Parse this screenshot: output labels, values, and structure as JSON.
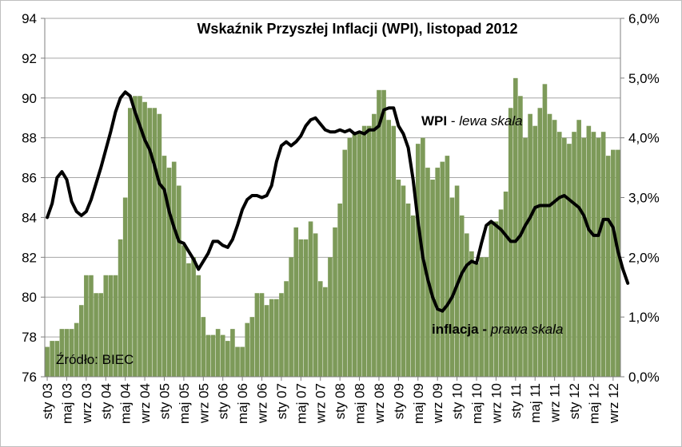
{
  "chart_data": {
    "type": "bar",
    "title": "Wskaźnik  Przyszłej Inflacji (WPI), listopad 2012",
    "source": "Źródło: BIEC",
    "annotations": {
      "wpi_name": "WPI",
      "wpi_sep": " - ",
      "wpi_scale": "lewa skala",
      "infl_name": "inflacja",
      "infl_sep": " - ",
      "infl_scale": "prawa skala"
    },
    "left_axis": {
      "ylim": [
        76,
        94
      ],
      "ticks": [
        "76",
        "78",
        "80",
        "82",
        "84",
        "86",
        "88",
        "90",
        "92",
        "94"
      ]
    },
    "right_axis": {
      "ylim": [
        0,
        6
      ],
      "ticks": [
        "0,0%",
        "1,0%",
        "2,0%",
        "3,0%",
        "4,0%",
        "5,0%",
        "6,0%"
      ]
    },
    "x_tick_labels": [
      "sty 03",
      "maj 03",
      "wrz 03",
      "sty 04",
      "maj 04",
      "wrz 04",
      "sty 05",
      "maj 05",
      "wrz 05",
      "sty 06",
      "maj 06",
      "wrz 06",
      "sty 07",
      "maj 07",
      "wrz 07",
      "sty 08",
      "maj 08",
      "wrz 08",
      "sty 09",
      "maj 09",
      "wrz 09",
      "sty 10",
      "maj 10",
      "wrz 10",
      "sty 11",
      "maj 11",
      "wrz 11",
      "sty 12",
      "maj 12",
      "wrz 12"
    ],
    "grid": true,
    "bar_color": "#7d9a59",
    "line_color": "#000000",
    "series": [
      {
        "type": "bar",
        "axis": "right",
        "values": [
          0.5,
          0.6,
          0.6,
          0.8,
          0.8,
          0.8,
          0.9,
          1.2,
          1.7,
          1.7,
          1.4,
          1.4,
          1.7,
          1.7,
          1.7,
          2.3,
          3.0,
          4.5,
          4.7,
          4.7,
          4.6,
          4.5,
          4.5,
          4.4,
          3.7,
          3.5,
          3.6,
          3.2,
          2.2,
          1.9,
          2.0,
          1.7,
          1.0,
          0.7,
          0.7,
          0.8,
          0.7,
          0.6,
          0.8,
          0.5,
          0.5,
          0.9,
          1.0,
          1.4,
          1.4,
          1.2,
          1.3,
          1.3,
          1.4,
          1.6,
          2.0,
          2.5,
          2.3,
          2.3,
          2.6,
          2.4,
          1.6,
          1.5,
          2.0,
          2.5,
          2.9,
          3.8,
          4.0,
          4.1,
          4.1,
          4.2,
          4.2,
          4.4,
          4.8,
          4.8,
          4.3,
          4.2,
          3.3,
          3.2,
          2.9,
          2.7,
          3.9,
          4.0,
          3.5,
          3.3,
          3.5,
          3.6,
          3.7,
          3.0,
          3.2,
          2.7,
          2.4,
          2.1,
          1.9,
          2.0,
          2.0,
          2.6,
          2.6,
          2.8,
          3.1,
          4.5,
          5.0,
          4.7,
          4.0,
          4.4,
          4.2,
          4.5,
          4.9,
          4.4,
          4.3,
          4.1,
          4.0,
          3.9,
          4.1,
          4.3,
          4.0,
          4.2,
          4.1,
          4.0,
          4.1,
          3.7,
          3.8,
          3.8
        ]
      },
      {
        "type": "line",
        "axis": "left",
        "values": [
          84.0,
          84.7,
          86.0,
          86.3,
          85.9,
          84.8,
          84.3,
          84.1,
          84.3,
          84.9,
          85.7,
          86.5,
          87.4,
          88.3,
          89.3,
          90.0,
          90.3,
          90.1,
          89.3,
          88.6,
          87.9,
          87.4,
          86.6,
          85.7,
          85.4,
          84.3,
          83.5,
          82.8,
          82.7,
          82.3,
          81.9,
          81.4,
          81.8,
          82.2,
          82.8,
          82.8,
          82.6,
          82.5,
          82.9,
          83.6,
          84.4,
          84.9,
          85.1,
          85.1,
          85.0,
          85.1,
          85.6,
          86.8,
          87.6,
          87.8,
          87.6,
          87.8,
          88.1,
          88.6,
          88.9,
          89.0,
          88.7,
          88.4,
          88.3,
          88.3,
          88.4,
          88.3,
          88.4,
          88.2,
          88.3,
          88.2,
          88.4,
          88.4,
          88.6,
          89.4,
          89.5,
          89.5,
          88.6,
          88.2,
          87.5,
          85.9,
          83.8,
          82.0,
          80.9,
          80.0,
          79.4,
          79.3,
          79.6,
          80.0,
          80.6,
          81.2,
          81.6,
          81.8,
          81.7,
          82.7,
          83.6,
          83.8,
          83.6,
          83.4,
          83.1,
          82.8,
          82.8,
          83.1,
          83.6,
          84.0,
          84.5,
          84.6,
          84.6,
          84.6,
          84.8,
          85.0,
          85.1,
          84.9,
          84.7,
          84.5,
          84.1,
          83.4,
          83.1,
          83.1,
          83.9,
          83.9,
          83.5,
          82.3,
          81.4,
          80.7
        ]
      }
    ]
  }
}
